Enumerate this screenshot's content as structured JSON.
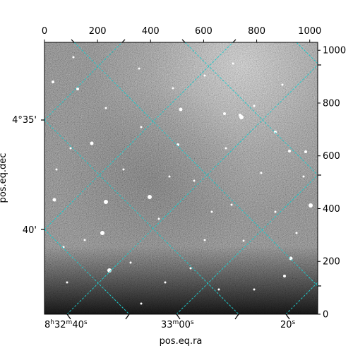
{
  "chart_data": {
    "type": "image",
    "title": "",
    "xlabel": "pos.eq.ra",
    "ylabel": "pos.eq.dec",
    "pixel_axes": {
      "x_ticks": [
        0,
        200,
        400,
        600,
        800,
        1000
      ],
      "x_tick_labels": [
        "0",
        "200",
        "400",
        "600",
        "800",
        "1000"
      ],
      "y_ticks": [
        0,
        200,
        400,
        600,
        800,
        1000
      ],
      "y_tick_labels": [
        "0",
        "200",
        "400",
        "600",
        "800",
        "1000"
      ],
      "xlim": [
        0,
        1030
      ],
      "ylim": [
        0,
        1030
      ]
    },
    "world_axes": {
      "ra_tick_labels": [
        "8h32m40s",
        "33m00s",
        "20s"
      ],
      "dec_tick_labels": [
        "4°35'",
        "40'"
      ]
    },
    "colormap": "gray",
    "grid": true,
    "grid_color": "#20c8c8",
    "grid_style": "dashed"
  }
}
